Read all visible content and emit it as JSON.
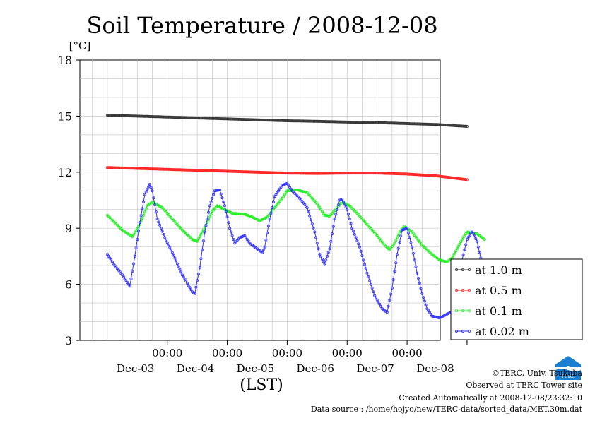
{
  "chart_data": {
    "type": "line",
    "title": "Soil Temperature / 2008-12-08",
    "ylabel": "[°C]",
    "xlabel": "(LST)",
    "ylim": [
      3,
      18
    ],
    "yticks": [
      3,
      6,
      9,
      12,
      15,
      18
    ],
    "xlim_hours": [
      0,
      144
    ],
    "time_unit": "hours",
    "xticks": [
      {
        "hour": 24,
        "time": "00:00",
        "date": "Dec-03"
      },
      {
        "hour": 48,
        "time": "00:00",
        "date": "Dec-04"
      },
      {
        "hour": 72,
        "time": "00:00",
        "date": "Dec-05"
      },
      {
        "hour": 96,
        "time": "00:00",
        "date": "Dec-06"
      },
      {
        "hour": 120,
        "time": "00:00",
        "date": "Dec-07"
      },
      {
        "hour": 144,
        "time": "",
        "date": "Dec-08"
      }
    ],
    "grid": true,
    "legend_position": "right",
    "series": [
      {
        "name": "at 1.0 m",
        "color": "#333333",
        "points": [
          [
            0,
            15.05
          ],
          [
            12,
            15.0
          ],
          [
            24,
            14.95
          ],
          [
            36,
            14.9
          ],
          [
            48,
            14.85
          ],
          [
            60,
            14.8
          ],
          [
            72,
            14.75
          ],
          [
            84,
            14.72
          ],
          [
            96,
            14.68
          ],
          [
            108,
            14.65
          ],
          [
            120,
            14.6
          ],
          [
            132,
            14.55
          ],
          [
            144,
            14.45
          ]
        ]
      },
      {
        "name": "at 0.5 m",
        "color": "#ff2020",
        "points": [
          [
            0,
            12.25
          ],
          [
            12,
            12.2
          ],
          [
            24,
            12.15
          ],
          [
            36,
            12.1
          ],
          [
            48,
            12.05
          ],
          [
            60,
            12.0
          ],
          [
            72,
            11.95
          ],
          [
            84,
            11.93
          ],
          [
            96,
            11.95
          ],
          [
            108,
            11.95
          ],
          [
            120,
            11.9
          ],
          [
            132,
            11.8
          ],
          [
            144,
            11.6
          ]
        ]
      },
      {
        "name": "at 0.1 m",
        "color": "#22ee22",
        "points": [
          [
            0,
            9.7
          ],
          [
            3,
            9.3
          ],
          [
            6,
            8.9
          ],
          [
            10,
            8.55
          ],
          [
            13,
            9.2
          ],
          [
            16,
            10.2
          ],
          [
            18,
            10.4
          ],
          [
            22,
            10.1
          ],
          [
            26,
            9.5
          ],
          [
            30,
            8.9
          ],
          [
            34,
            8.4
          ],
          [
            36,
            8.3
          ],
          [
            40,
            9.3
          ],
          [
            42,
            9.9
          ],
          [
            44,
            10.2
          ],
          [
            47,
            10.0
          ],
          [
            50,
            9.8
          ],
          [
            55,
            9.75
          ],
          [
            58,
            9.6
          ],
          [
            61,
            9.4
          ],
          [
            64,
            9.6
          ],
          [
            67,
            10.1
          ],
          [
            70,
            10.6
          ],
          [
            72,
            11.0
          ],
          [
            76,
            11.05
          ],
          [
            80,
            10.9
          ],
          [
            84,
            10.3
          ],
          [
            87,
            9.7
          ],
          [
            89,
            9.65
          ],
          [
            92,
            10.1
          ],
          [
            94,
            10.4
          ],
          [
            97,
            10.2
          ],
          [
            100,
            9.8
          ],
          [
            104,
            9.2
          ],
          [
            108,
            8.6
          ],
          [
            111,
            8.1
          ],
          [
            113,
            7.85
          ],
          [
            115,
            8.2
          ],
          [
            117,
            8.8
          ],
          [
            119,
            9.1
          ],
          [
            122,
            8.8
          ],
          [
            126,
            8.1
          ],
          [
            130,
            7.6
          ],
          [
            133,
            7.3
          ],
          [
            136,
            7.2
          ],
          [
            138,
            7.4
          ],
          [
            140,
            7.9
          ],
          [
            142,
            8.4
          ],
          [
            144,
            8.8
          ],
          [
            148,
            8.7
          ],
          [
            151,
            8.4
          ]
        ]
      },
      {
        "name": "at 0.02 m",
        "color": "#3333ff",
        "points": [
          [
            0,
            7.6
          ],
          [
            3,
            7.0
          ],
          [
            6,
            6.5
          ],
          [
            8,
            6.1
          ],
          [
            9,
            5.9
          ],
          [
            11,
            7.5
          ],
          [
            13,
            9.3
          ],
          [
            15,
            10.8
          ],
          [
            17,
            11.35
          ],
          [
            18,
            11.0
          ],
          [
            20,
            9.5
          ],
          [
            23,
            8.5
          ],
          [
            26,
            7.7
          ],
          [
            30,
            6.5
          ],
          [
            34,
            5.6
          ],
          [
            35,
            5.5
          ],
          [
            37,
            6.9
          ],
          [
            39,
            8.8
          ],
          [
            41,
            10.2
          ],
          [
            43,
            11.0
          ],
          [
            45,
            11.05
          ],
          [
            47,
            10.2
          ],
          [
            49,
            9.0
          ],
          [
            51,
            8.2
          ],
          [
            53,
            8.5
          ],
          [
            55,
            8.6
          ],
          [
            57,
            8.2
          ],
          [
            60,
            7.9
          ],
          [
            62,
            7.7
          ],
          [
            63,
            8.0
          ],
          [
            65,
            9.5
          ],
          [
            67,
            10.7
          ],
          [
            70,
            11.3
          ],
          [
            72,
            11.4
          ],
          [
            74,
            11.0
          ],
          [
            77,
            10.6
          ],
          [
            80,
            10.1
          ],
          [
            83,
            8.8
          ],
          [
            85,
            7.6
          ],
          [
            87,
            7.1
          ],
          [
            89,
            7.9
          ],
          [
            91,
            9.5
          ],
          [
            93,
            10.5
          ],
          [
            94,
            10.55
          ],
          [
            96,
            10.0
          ],
          [
            98,
            9.0
          ],
          [
            101,
            8.0
          ],
          [
            104,
            6.6
          ],
          [
            107,
            5.4
          ],
          [
            110,
            4.7
          ],
          [
            112,
            4.5
          ],
          [
            114,
            5.8
          ],
          [
            116,
            7.6
          ],
          [
            118,
            8.9
          ],
          [
            120,
            9.0
          ],
          [
            122,
            8.0
          ],
          [
            124,
            6.6
          ],
          [
            126,
            5.5
          ],
          [
            128,
            4.7
          ],
          [
            130,
            4.3
          ],
          [
            133,
            4.2
          ],
          [
            136,
            4.4
          ],
          [
            138,
            4.55
          ],
          [
            140,
            5.8
          ],
          [
            142,
            7.3
          ],
          [
            144,
            8.4
          ],
          [
            146,
            8.85
          ],
          [
            148,
            8.3
          ],
          [
            150,
            7.1
          ],
          [
            151,
            6.1
          ]
        ]
      }
    ]
  },
  "footer": {
    "copyright": "©TERC, Univ. Tsukuba",
    "observed": "Observed at TERC Tower site",
    "created": "Created Automatically at 2008-12-08/23:32:10",
    "source": "Data source : /home/hojyo/new/TERC-data/sorted_data/MET.30m.dat",
    "logo_text": "TERC"
  }
}
